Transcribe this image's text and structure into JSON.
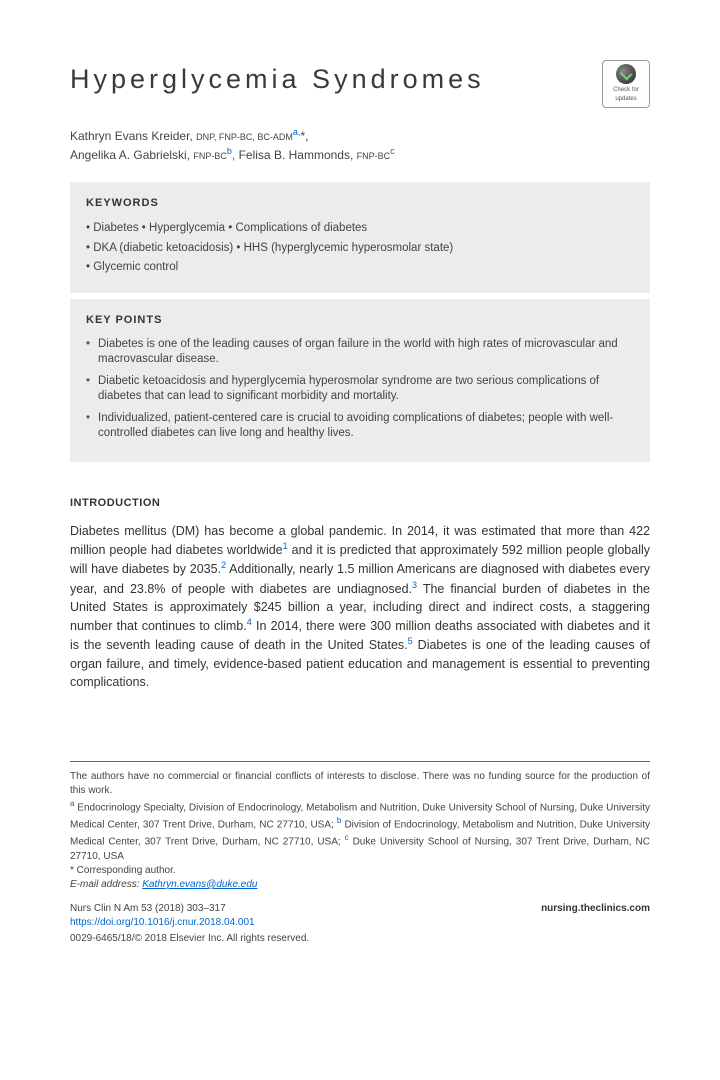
{
  "title": "Hyperglycemia Syndromes",
  "badge": {
    "line1": "Check for",
    "line2": "updates"
  },
  "authors": {
    "a1_name": "Kathryn Evans Kreider, ",
    "a1_cred": "DNP, FNP-BC, BC-ADM",
    "a1_sup": "a,",
    "a1_ast": "*",
    "a2_name": "Angelika A. Gabrielski, ",
    "a2_cred": "FNP-BC",
    "a2_sup": "b",
    "sep": ", ",
    "a3_name": "Felisa B. Hammonds, ",
    "a3_cred": "FNP-BC",
    "a3_sup": "c"
  },
  "keywords": {
    "heading": "KEYWORDS",
    "l1": "• Diabetes • Hyperglycemia • Complications of diabetes",
    "l2": "• DKA (diabetic ketoacidosis) • HHS (hyperglycemic hyperosmolar state)",
    "l3": "• Glycemic control"
  },
  "keypoints": {
    "heading": "KEY POINTS",
    "p1": "Diabetes is one of the leading causes of organ failure in the world with high rates of microvascular and macrovascular disease.",
    "p2": "Diabetic ketoacidosis and hyperglycemia hyperosmolar syndrome are two serious complications of diabetes that can lead to significant morbidity and mortality.",
    "p3": "Individualized, patient-centered care is crucial to avoiding complications of diabetes; people with well-controlled diabetes can live long and healthy lives."
  },
  "intro": {
    "heading": "INTRODUCTION",
    "t1": "Diabetes mellitus (DM) has become a global pandemic. In 2014, it was estimated that more than 422 million people had diabetes worldwide",
    "s1": "1",
    "t2": " and it is predicted that approximately 592 million people globally will have diabetes by 2035.",
    "s2": "2",
    "t3": " Additionally, nearly 1.5 million Americans are diagnosed with diabetes every year, and 23.8% of people with diabetes are undiagnosed.",
    "s3": "3",
    "t4": " The financial burden of diabetes in the United States is approximately $245 billion a year, including direct and indirect costs, a staggering number that continues to climb.",
    "s4": "4",
    "t5": " In 2014, there were 300 million deaths associated with diabetes and it is the seventh leading cause of death in the United States.",
    "s5": "5",
    "t6": " Diabetes is one of the leading causes of organ failure, and timely, evidence-based patient education and management is essential to preventing complications."
  },
  "footnotes": {
    "disclosure": "The authors have no commercial or financial conflicts of interests to disclose. There was no funding source for the production of this work.",
    "aff_a_sup": "a",
    "aff_a": " Endocrinology Specialty, Division of Endocrinology, Metabolism and Nutrition, Duke University School of Nursing, Duke University Medical Center, 307 Trent Drive, Durham, NC 27710, USA; ",
    "aff_b_sup": "b",
    "aff_b": " Division of Endocrinology, Metabolism and Nutrition, Duke University Medical Center, 307 Trent Drive, Durham, NC 27710, USA; ",
    "aff_c_sup": "c",
    "aff_c": " Duke University School of Nursing, 307 Trent Drive, Durham, NC 27710, USA",
    "corr_label": "* Corresponding author.",
    "email_label": "E-mail address: ",
    "email": "Kathryn.evans@duke.edu",
    "citation": "Nurs Clin N Am 53 (2018) 303–317",
    "doi": "https://doi.org/10.1016/j.cnur.2018.04.001",
    "site": "nursing.theclinics.com",
    "copyright": "0029-6465/18/© 2018 Elsevier Inc. All rights reserved."
  },
  "colors": {
    "box_bg": "#ececec",
    "link": "#0066cc",
    "text": "#333333"
  }
}
